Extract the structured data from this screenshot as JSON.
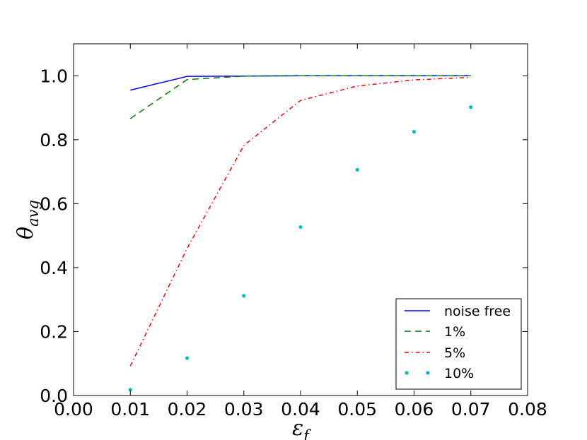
{
  "chart_data": {
    "type": "line",
    "xlabel_main": "ε",
    "xlabel_sub": "f",
    "ylabel_main": "θ",
    "ylabel_sub": "avg",
    "xlim": [
      0.0,
      0.08
    ],
    "ylim": [
      0.0,
      1.1
    ],
    "xticks": [
      0.0,
      0.01,
      0.02,
      0.03,
      0.04,
      0.05,
      0.06,
      0.07,
      0.08
    ],
    "xtick_labels": [
      "0.00",
      "0.01",
      "0.02",
      "0.03",
      "0.04",
      "0.05",
      "0.06",
      "0.07",
      "0.08"
    ],
    "yticks": [
      0.0,
      0.2,
      0.4,
      0.6,
      0.8,
      1.0
    ],
    "ytick_labels": [
      "0.0",
      "0.2",
      "0.4",
      "0.6",
      "0.8",
      "1.0"
    ],
    "grid": false,
    "legend_position": "lower-right",
    "x": [
      0.01,
      0.02,
      0.03,
      0.04,
      0.05,
      0.06,
      0.07
    ],
    "series": [
      {
        "name": "noise free",
        "color": "#0000ff",
        "style": "solid",
        "values": [
          0.955,
          0.998,
          0.999,
          1.0,
          1.0,
          1.0,
          1.0
        ]
      },
      {
        "name": "1%",
        "color": "#008000",
        "style": "dashed",
        "values": [
          0.866,
          0.988,
          0.999,
          1.0,
          1.0,
          1.0,
          1.0
        ]
      },
      {
        "name": "5%",
        "color": "#ff0000",
        "style": "dashdot",
        "values": [
          0.092,
          0.46,
          0.782,
          0.923,
          0.968,
          0.987,
          0.995
        ]
      },
      {
        "name": "10%",
        "color": "#00bfbf",
        "style": "dots",
        "values": [
          0.018,
          0.117,
          0.312,
          0.527,
          0.706,
          0.825,
          0.902
        ]
      }
    ]
  }
}
